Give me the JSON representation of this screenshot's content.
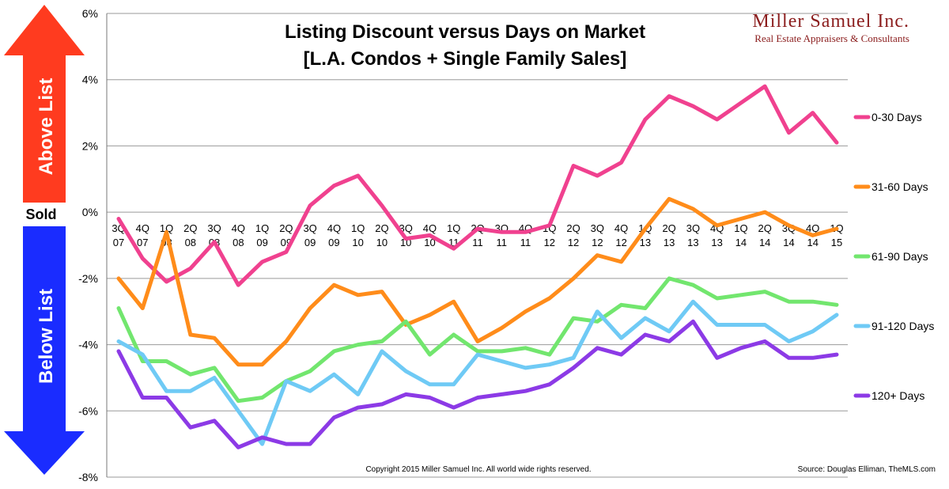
{
  "brand": {
    "name": "Miller Samuel Inc.",
    "tagline": "Real Estate Appraisers & Consultants"
  },
  "side_labels": {
    "above": "Above List",
    "sold": "Sold",
    "below": "Below List",
    "above_color": "#ff3b1f",
    "below_color": "#1a2cff"
  },
  "footer": {
    "copyright": "Copyright 2015 Miller Samuel Inc.  All world wide rights reserved.",
    "source": "Source: Douglas Elliman, TheMLS.com"
  },
  "chart_data": {
    "type": "line",
    "title": "Listing Discount versus Days on Market",
    "subtitle": "[L.A. Condos + Single Family Sales]",
    "xlabel": "",
    "ylabel": "",
    "ylim": [
      -8,
      6
    ],
    "yticks": [
      6,
      4,
      2,
      0,
      -2,
      -4,
      -6,
      -8
    ],
    "ytick_labels": [
      "6%",
      "4%",
      "2%",
      "0%",
      "-2%",
      "-4%",
      "-6%",
      "-8%"
    ],
    "grid": true,
    "categories": [
      [
        "3Q",
        "07"
      ],
      [
        "4Q",
        "07"
      ],
      [
        "1Q",
        "08"
      ],
      [
        "2Q",
        "08"
      ],
      [
        "3Q",
        "08"
      ],
      [
        "4Q",
        "08"
      ],
      [
        "1Q",
        "09"
      ],
      [
        "2Q",
        "09"
      ],
      [
        "3Q",
        "09"
      ],
      [
        "4Q",
        "09"
      ],
      [
        "1Q",
        "10"
      ],
      [
        "2Q",
        "10"
      ],
      [
        "3Q",
        "10"
      ],
      [
        "4Q",
        "10"
      ],
      [
        "1Q",
        "11"
      ],
      [
        "2Q",
        "11"
      ],
      [
        "3Q",
        "11"
      ],
      [
        "4Q",
        "11"
      ],
      [
        "1Q",
        "12"
      ],
      [
        "2Q",
        "12"
      ],
      [
        "3Q",
        "12"
      ],
      [
        "4Q",
        "12"
      ],
      [
        "1Q",
        "13"
      ],
      [
        "2Q",
        "13"
      ],
      [
        "3Q",
        "13"
      ],
      [
        "4Q",
        "13"
      ],
      [
        "1Q",
        "14"
      ],
      [
        "2Q",
        "14"
      ],
      [
        "3Q",
        "14"
      ],
      [
        "4Q",
        "14"
      ],
      [
        "1Q",
        "15"
      ]
    ],
    "series": [
      {
        "name": "0-30 Days",
        "color": "#f0418f",
        "values": [
          -0.2,
          -1.4,
          -2.1,
          -1.7,
          -0.9,
          -2.2,
          -1.5,
          -1.2,
          0.2,
          0.8,
          1.1,
          0.2,
          -0.8,
          -0.7,
          -1.1,
          -0.5,
          -0.6,
          -0.6,
          -0.4,
          1.4,
          1.1,
          1.5,
          2.8,
          3.5,
          3.2,
          2.8,
          3.3,
          3.8,
          2.4,
          3.0,
          2.1
        ]
      },
      {
        "name": "31-60 Days",
        "color": "#ff8c1a",
        "values": [
          -2.0,
          -2.9,
          -0.6,
          -3.7,
          -3.8,
          -4.6,
          -4.6,
          -3.9,
          -2.9,
          -2.2,
          -2.5,
          -2.4,
          -3.4,
          -3.1,
          -2.7,
          -3.9,
          -3.5,
          -3.0,
          -2.6,
          -2.0,
          -1.3,
          -1.5,
          -0.5,
          0.4,
          0.1,
          -0.4,
          -0.2,
          0.0,
          -0.4,
          -0.7,
          -0.5
        ]
      },
      {
        "name": "61-90 Days",
        "color": "#72e66e",
        "values": [
          -2.9,
          -4.5,
          -4.5,
          -4.9,
          -4.7,
          -5.7,
          -5.6,
          -5.1,
          -4.8,
          -4.2,
          -4.0,
          -3.9,
          -3.3,
          -4.3,
          -3.7,
          -4.2,
          -4.2,
          -4.1,
          -4.3,
          -3.2,
          -3.3,
          -2.8,
          -2.9,
          -2.0,
          -2.2,
          -2.6,
          -2.5,
          -2.4,
          -2.7,
          -2.7,
          -2.8
        ]
      },
      {
        "name": "91-120 Days",
        "color": "#6fcaf5",
        "values": [
          -3.9,
          -4.3,
          -5.4,
          -5.4,
          -5.0,
          -6.0,
          -7.0,
          -5.1,
          -5.4,
          -4.9,
          -5.5,
          -4.2,
          -4.8,
          -5.2,
          -5.2,
          -4.3,
          -4.5,
          -4.7,
          -4.6,
          -4.4,
          -3.0,
          -3.8,
          -3.2,
          -3.6,
          -2.7,
          -3.4,
          -3.4,
          -3.4,
          -3.9,
          -3.6,
          -3.1
        ]
      },
      {
        "name": "120+ Days",
        "color": "#8c3ae6",
        "values": [
          -4.2,
          -5.6,
          -5.6,
          -6.5,
          -6.3,
          -7.1,
          -6.8,
          -7.0,
          -7.0,
          -6.2,
          -5.9,
          -5.8,
          -5.5,
          -5.6,
          -5.9,
          -5.6,
          -5.5,
          -5.4,
          -5.2,
          -4.7,
          -4.1,
          -4.3,
          -3.7,
          -3.9,
          -3.3,
          -4.4,
          -4.1,
          -3.9,
          -4.4,
          -4.4,
          -4.3
        ]
      }
    ]
  }
}
